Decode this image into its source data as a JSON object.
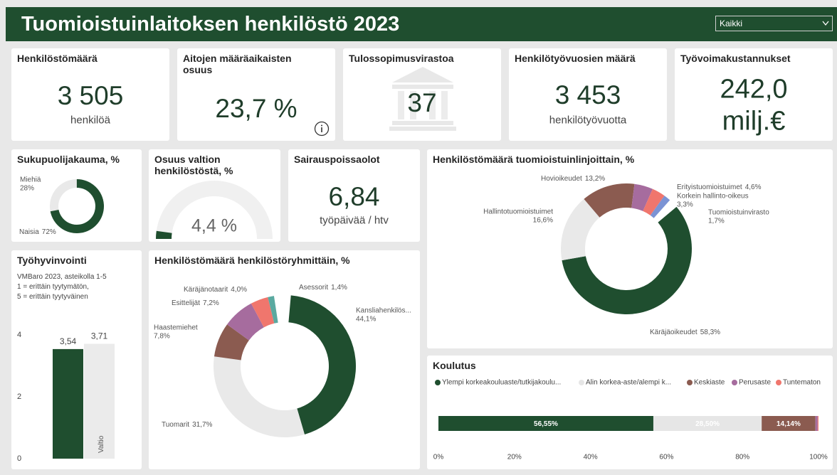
{
  "header": {
    "title": "Tuomioistuinlaitoksen henkilöstö 2023",
    "filter": "Kaikki"
  },
  "kpis": [
    {
      "title": "Henkilöstömäärä",
      "value": "3 505",
      "unit": "henkilöä"
    },
    {
      "title": "Aitojen määräaikaisten osuus",
      "value": "23,7 %"
    },
    {
      "title": "Tulossopimusvirastoa",
      "value": "37"
    },
    {
      "title": "Henkilötyövuosien määrä",
      "value": "3 453",
      "unit": "henkilötyövuotta"
    },
    {
      "title": "Työvoimakustannukset",
      "value": "242,0",
      "unit": "milj.€"
    }
  ],
  "sick_leave": {
    "title": "Sairauspoissaolot",
    "value": "6,84",
    "unit": "työpäivää / htv"
  },
  "gender": {
    "type": "donut",
    "title": "Sukupuolijakauma, %",
    "categories": [
      "Miehiä",
      "Naisia"
    ],
    "values": [
      28,
      72
    ],
    "value_labels": [
      "28%",
      "72%"
    ],
    "colors": [
      "#e9e9e9",
      "#1f4e2f"
    ]
  },
  "state_share": {
    "type": "gauge",
    "title": "Osuus valtion henkilöstöstä, %",
    "value": 4.4,
    "value_label": "4,4 %",
    "range": [
      0,
      100
    ],
    "color": "#1f4e2f"
  },
  "wellbeing": {
    "type": "bar",
    "title": "Työhyvinvointi",
    "subtitle": [
      "VMBaro 2023, asteikolla 1-5",
      "1 = erittäin tyytymätön,",
      "5 = erittäin tyytyväinen"
    ],
    "categories": [
      null,
      "Valtio"
    ],
    "values": [
      3.54,
      3.71
    ],
    "value_labels": [
      "3,54",
      "3,71"
    ],
    "colors": [
      "#1f4e2f",
      "#ebebeb"
    ],
    "ylim": [
      0,
      4.25
    ],
    "yticks": [
      0,
      2,
      4
    ]
  },
  "court_lines": {
    "type": "donut",
    "title": "Henkilöstömäärä tuomioistuinlinjoittain, %",
    "categories": [
      "Käräjäoikeudet",
      "Hallintotuomioistuimet",
      "Hovioikeudet",
      "Erityistuomioistuimet",
      "Korkein hallinto-oikeus",
      "Tuomioistuinvirasto"
    ],
    "values": [
      58.3,
      16.6,
      13.2,
      4.6,
      3.3,
      1.7
    ],
    "value_labels": [
      "58,3%",
      "16,6%",
      "13,2%",
      "4,6%",
      "3,3%",
      "1,7%"
    ],
    "colors": [
      "#1f4e2f",
      "#e9e9e9",
      "#8b5b50",
      "#a66c9e",
      "#f0766d",
      "#7b93d4"
    ]
  },
  "staff_groups": {
    "type": "donut",
    "title": "Henkilöstömäärä henkilöstöryhmittäin, %",
    "categories": [
      "Kansliahenkilös...",
      "Tuomarit",
      "Haastemiehet",
      "Esittelijät",
      "Käräjänotaarit",
      "Asessorit"
    ],
    "values": [
      44.1,
      31.7,
      7.8,
      7.2,
      4.0,
      1.4
    ],
    "value_labels": [
      "44,1%",
      "31,7%",
      "7,8%",
      "7,2%",
      "4,0%",
      "1,4%"
    ],
    "colors": [
      "#1f4e2f",
      "#e9e9e9",
      "#8b5b50",
      "#a66c9e",
      "#f0766d",
      "#5aa9a0"
    ]
  },
  "education": {
    "type": "stacked_bar",
    "title": "Koulutus",
    "series": [
      {
        "name": "Ylempi korkeakouluaste/tutkijakoulu...",
        "color": "#1f4e2f",
        "values": [
          56.55
        ],
        "value_labels": [
          "56,55%"
        ]
      },
      {
        "name": "Alin korkea-aste/alempi k...",
        "color": "#e6e6e6",
        "values": [
          28.5
        ],
        "value_labels": [
          "28,50%"
        ]
      },
      {
        "name": "Keskiaste",
        "color": "#8b5b50",
        "values": [
          14.14
        ],
        "value_labels": [
          "14,14%"
        ]
      },
      {
        "name": "Perusaste",
        "color": "#a66c9e",
        "values": [
          0.6
        ]
      },
      {
        "name": "Tuntematon",
        "color": "#f0766d",
        "values": [
          0.2
        ]
      }
    ],
    "xlim": [
      0,
      100
    ],
    "xticks": [
      {
        "value": 0,
        "label": "0%"
      },
      {
        "value": 20,
        "label": "20%"
      },
      {
        "value": 40,
        "label": "40%"
      },
      {
        "value": 60,
        "label": "60%"
      },
      {
        "value": 80,
        "label": "80%"
      },
      {
        "value": 100,
        "label": "100%"
      }
    ]
  }
}
